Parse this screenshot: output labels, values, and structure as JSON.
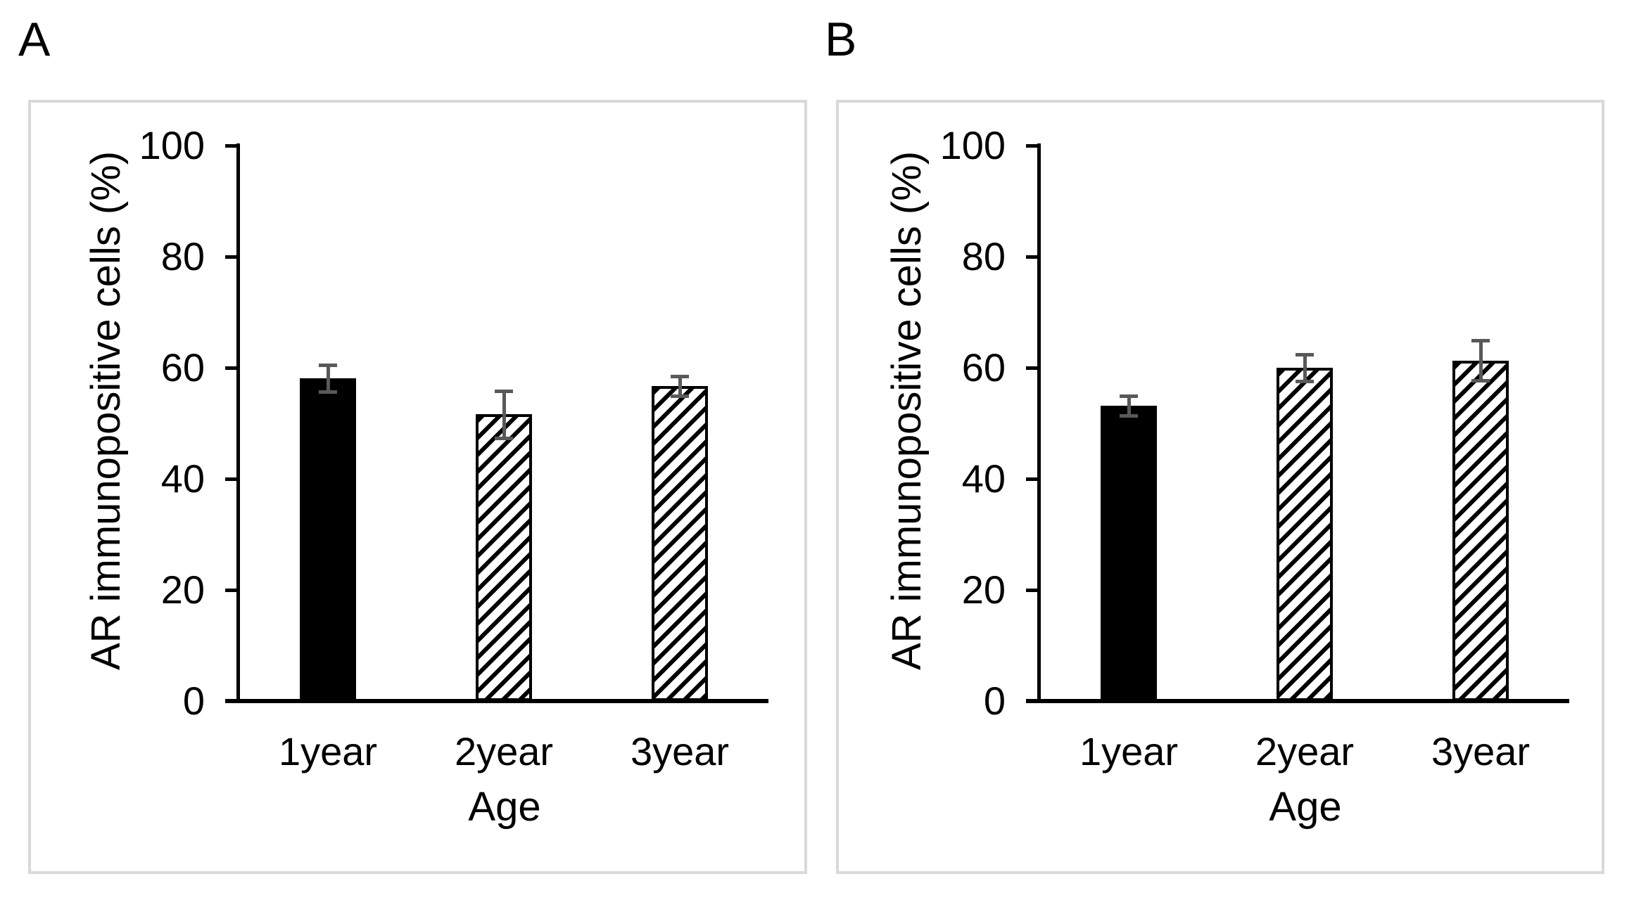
{
  "figure": {
    "panels": [
      {
        "label": "A"
      },
      {
        "label": "B"
      }
    ]
  },
  "chart_data": [
    {
      "type": "bar",
      "panel": "A",
      "title": "",
      "categories": [
        "1year",
        "2year",
        "3year"
      ],
      "values": [
        58.1,
        51.6,
        56.7
      ],
      "error_bars": [
        2.4,
        4.2,
        1.8
      ],
      "bar_styles": [
        "solid-black",
        "diagonal-hatch",
        "diagonal-hatch"
      ],
      "xlabel": "Age",
      "ylabel": "AR immunopositive cells (%)",
      "ylim": [
        0,
        100
      ],
      "yticks": [
        0,
        20,
        40,
        60,
        80,
        100
      ],
      "grid": false,
      "legend": "none"
    },
    {
      "type": "bar",
      "panel": "B",
      "title": "",
      "categories": [
        "1year",
        "2year",
        "3year"
      ],
      "values": [
        53.2,
        60.0,
        61.3
      ],
      "error_bars": [
        1.8,
        2.4,
        3.6
      ],
      "bar_styles": [
        "solid-black",
        "diagonal-hatch",
        "diagonal-hatch"
      ],
      "xlabel": "Age",
      "ylabel": "AR immunopositive cells (%)",
      "ylim": [
        0,
        100
      ],
      "yticks": [
        0,
        20,
        40,
        60,
        80,
        100
      ],
      "grid": false,
      "legend": "none"
    }
  ],
  "colors": {
    "bar_fill": "#000000",
    "hatch_foreground": "#000000",
    "hatch_background": "#ffffff",
    "error_bar": "#595959",
    "axis": "#000000",
    "frame_border": "#d9d9d9",
    "background": "#ffffff",
    "text": "#000000"
  }
}
